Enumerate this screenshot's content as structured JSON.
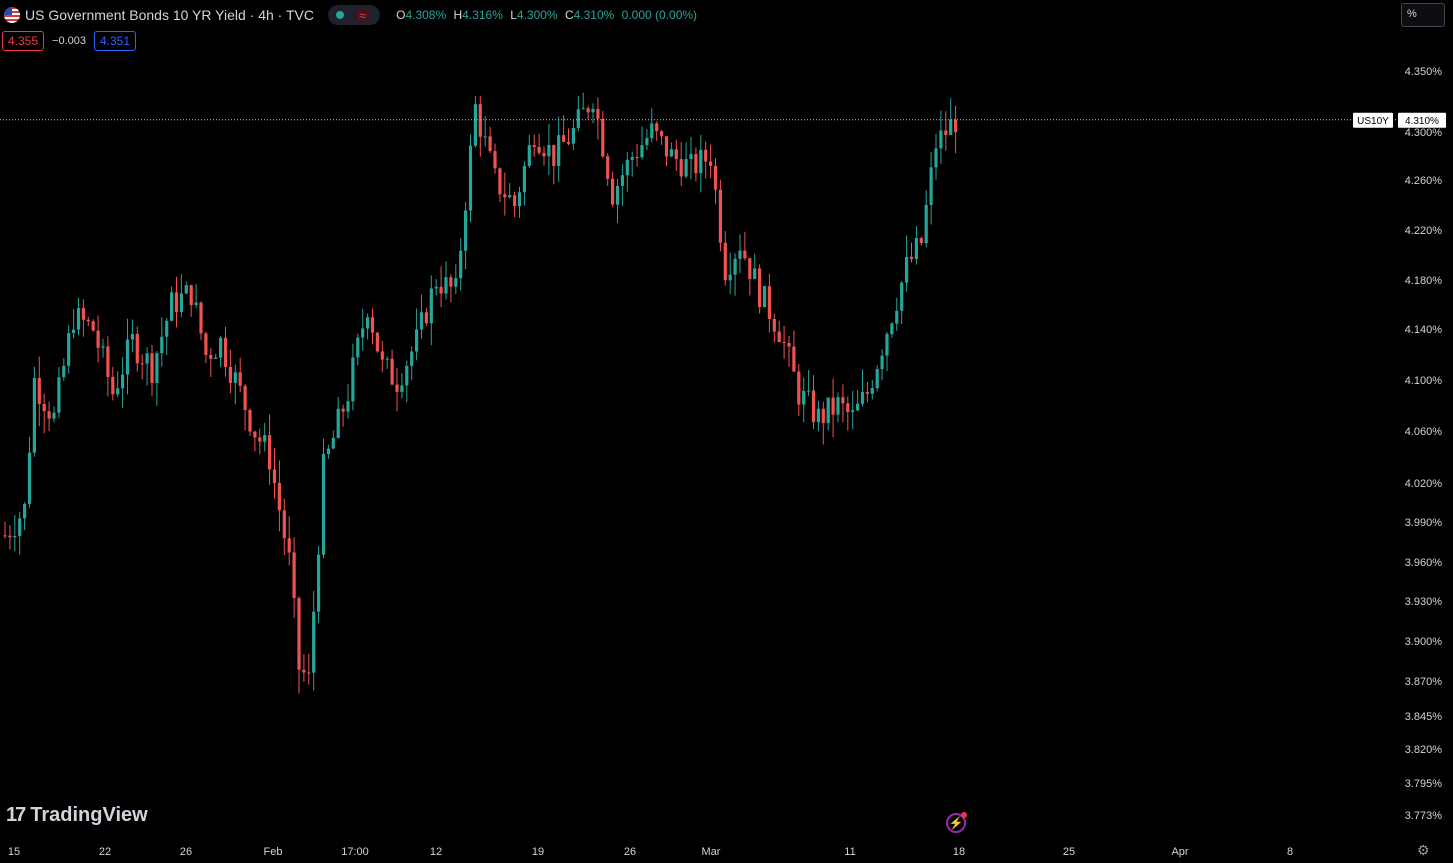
{
  "header": {
    "title": "US Government Bonds 10 YR Yield · 4h · TVC",
    "ohlc": {
      "o_label": "O",
      "o": "4.308%",
      "h_label": "H",
      "h": "4.316%",
      "l_label": "L",
      "l": "4.300%",
      "c_label": "C",
      "c": "4.310%",
      "change": "0.000 (0.00%)"
    },
    "wave_icon": "≈"
  },
  "quote": {
    "bid": "4.355",
    "spread": "−0.003",
    "ask": "4.351"
  },
  "scale_button": "%",
  "brand": {
    "mark": "17",
    "name": "TradingView"
  },
  "icons": [
    "us-flag-icon",
    "status-dot-icon",
    "wave-icon",
    "lightning-icon",
    "settings-icon"
  ],
  "colors": {
    "up": "#26a69a",
    "down": "#ef5350",
    "background": "#000000",
    "text": "#d1d4dc"
  },
  "chart_data": {
    "type": "candlestick",
    "symbol": "US10Y",
    "last_price_label": "4.310%",
    "y_ticks": [
      "4.350%",
      "4.300%",
      "4.260%",
      "4.220%",
      "4.180%",
      "4.140%",
      "4.100%",
      "4.060%",
      "4.020%",
      "3.990%",
      "3.960%",
      "3.930%",
      "3.900%",
      "3.870%",
      "3.845%",
      "3.820%",
      "3.795%",
      "3.773%"
    ],
    "x_ticks": [
      "15",
      "22",
      "26",
      "Feb",
      "17:00",
      "12",
      "19",
      "26",
      "Mar",
      "11",
      "18",
      "25",
      "Apr",
      "8"
    ],
    "ylim": [
      3.773,
      4.35
    ],
    "close_path": [
      [
        0,
        3.98
      ],
      [
        4,
        4.0
      ],
      [
        6,
        4.1
      ],
      [
        10,
        4.07
      ],
      [
        14,
        4.15
      ],
      [
        18,
        4.14
      ],
      [
        22,
        4.09
      ],
      [
        26,
        4.13
      ],
      [
        30,
        4.11
      ],
      [
        34,
        4.16
      ],
      [
        38,
        4.17
      ],
      [
        41,
        4.12
      ],
      [
        44,
        4.13
      ],
      [
        48,
        4.09
      ],
      [
        51,
        4.06
      ],
      [
        54,
        4.04
      ],
      [
        58,
        3.96
      ],
      [
        60,
        3.88
      ],
      [
        62,
        3.87
      ],
      [
        65,
        4.03
      ],
      [
        70,
        4.09
      ],
      [
        74,
        4.16
      ],
      [
        77,
        4.11
      ],
      [
        80,
        4.1
      ],
      [
        84,
        4.13
      ],
      [
        88,
        4.18
      ],
      [
        92,
        4.17
      ],
      [
        96,
        4.32
      ],
      [
        100,
        4.26
      ],
      [
        104,
        4.24
      ],
      [
        108,
        4.3
      ],
      [
        112,
        4.28
      ],
      [
        116,
        4.3
      ],
      [
        120,
        4.33
      ],
      [
        124,
        4.25
      ],
      [
        128,
        4.28
      ],
      [
        132,
        4.3
      ],
      [
        136,
        4.28
      ],
      [
        140,
        4.27
      ],
      [
        144,
        4.28
      ],
      [
        147,
        4.19
      ],
      [
        150,
        4.21
      ],
      [
        154,
        4.17
      ],
      [
        158,
        4.14
      ],
      [
        162,
        4.09
      ],
      [
        166,
        4.07
      ],
      [
        170,
        4.08
      ],
      [
        173,
        4.07
      ],
      [
        176,
        4.09
      ],
      [
        180,
        4.14
      ],
      [
        184,
        4.19
      ],
      [
        187,
        4.21
      ],
      [
        190,
        4.29
      ],
      [
        194,
        4.31
      ]
    ]
  }
}
